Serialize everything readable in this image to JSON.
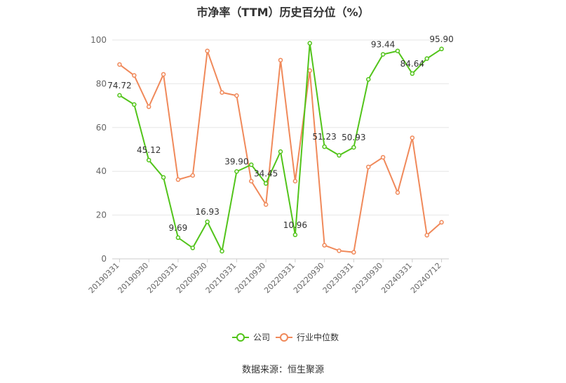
{
  "chart_data": {
    "type": "line",
    "title": "市净率（TTM）历史百分位（%）",
    "source": "数据来源：恒生聚源",
    "ylim": [
      0,
      100
    ],
    "yticks": [
      0,
      20,
      40,
      60,
      80,
      100
    ],
    "grid": true,
    "legend_position": "bottom-center",
    "x_tick_labels": [
      "20190331",
      "20190930",
      "20200331",
      "20200930",
      "20210331",
      "20210930",
      "20220331",
      "20220930",
      "20230331",
      "20230930",
      "20240331",
      "20240712"
    ],
    "x": [
      "20190331",
      "20190630",
      "20190930",
      "20191231",
      "20200331",
      "20200630",
      "20200930",
      "20201231",
      "20210331",
      "20210630",
      "20210930",
      "20211231",
      "20220331",
      "20220630",
      "20220930",
      "20221231",
      "20230331",
      "20230630",
      "20230930",
      "20231231",
      "20240331",
      "20240630",
      "20240712"
    ],
    "series": [
      {
        "name": "公司",
        "color": "#52c41a",
        "values": [
          74.72,
          70.5,
          45.12,
          37.2,
          9.69,
          5.0,
          16.93,
          3.5,
          39.9,
          43.0,
          34.45,
          49.0,
          10.96,
          98.5,
          51.23,
          47.3,
          50.93,
          82.0,
          93.44,
          95.0,
          84.64,
          91.5,
          95.9
        ],
        "labels": {
          "0": "74.72",
          "2": "45.12",
          "4": "9.69",
          "6": "16.93",
          "8": "39.90",
          "10": "34.45",
          "12": "10.96",
          "14": "51.23",
          "16": "50.93",
          "18": "93.44",
          "20": "84.64",
          "22": "95.90"
        }
      },
      {
        "name": "行业中位数",
        "color": "#f0895a",
        "values": [
          88.8,
          83.8,
          69.5,
          84.3,
          36.2,
          38.1,
          95.0,
          76.0,
          74.6,
          35.5,
          24.8,
          90.8,
          35.5,
          86.0,
          6.2,
          3.7,
          3.0,
          42.0,
          46.4,
          30.3,
          55.3,
          10.8,
          16.7
        ]
      }
    ]
  }
}
